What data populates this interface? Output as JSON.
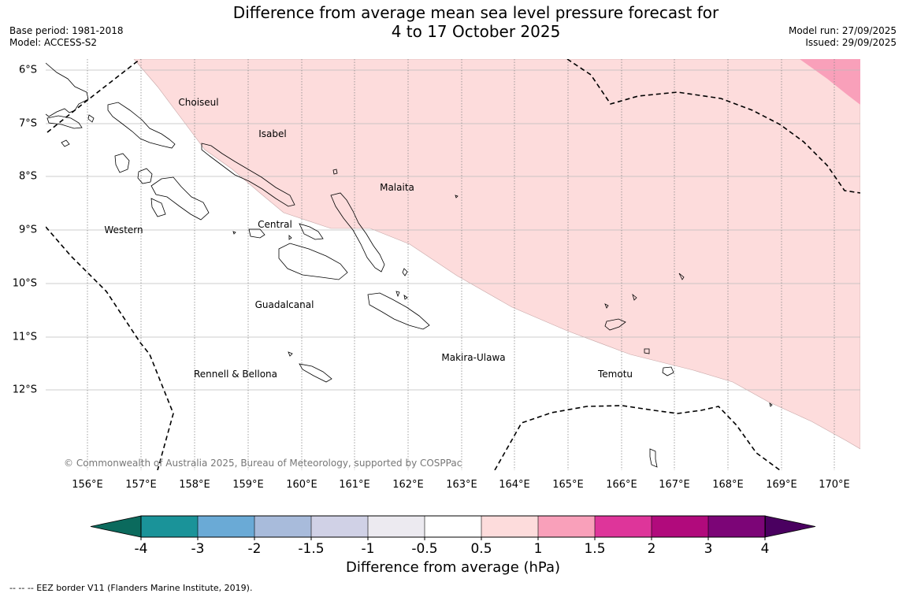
{
  "header": {
    "title_line1": "Difference from average mean sea level pressure forecast for",
    "title_line2": "4 to 17 October 2025",
    "base_period": "Base period: 1981-2018",
    "model": "Model: ACCESS-S2",
    "model_run": "Model run: 27/09/2025",
    "issued": "Issued: 29/09/2025"
  },
  "map": {
    "lat_labels": [
      "6°S",
      "7°S",
      "8°S",
      "9°S",
      "10°S",
      "11°S",
      "12°S"
    ],
    "lon_labels": [
      "156°E",
      "157°E",
      "158°E",
      "159°E",
      "160°E",
      "161°E",
      "162°E",
      "163°E",
      "164°E",
      "165°E",
      "166°E",
      "167°E",
      "168°E",
      "169°E",
      "170°E"
    ],
    "regions": [
      {
        "name": "Choiseul"
      },
      {
        "name": "Isabel"
      },
      {
        "name": "Malaita"
      },
      {
        "name": "Western"
      },
      {
        "name": "Central"
      },
      {
        "name": "Guadalcanal"
      },
      {
        "name": "Makira-Ulawa"
      },
      {
        "name": "Rennell & Bellona"
      },
      {
        "name": "Temotu"
      }
    ],
    "copyright": "© Commonwealth of Australia 2025, Bureau of Meteorology, supported by COSPPac",
    "fill_colors": {
      "band_0_5_to_1": "#fddcdc",
      "band_1_to_1_5": "#f9a0ba"
    }
  },
  "colorbar": {
    "ticks": [
      "-4",
      "-3",
      "-2",
      "-1.5",
      "-1",
      "-0.5",
      "0.5",
      "1",
      "1.5",
      "2",
      "3",
      "4"
    ],
    "colors": [
      "#1a9399",
      "#6aaad6",
      "#a8bbdb",
      "#d0d1e6",
      "#eceaf0",
      "#ffffff",
      "#fddcdc",
      "#f9a0ba",
      "#de359a",
      "#b10a7c",
      "#7c0577"
    ],
    "under_color": "#0b6a5d",
    "over_color": "#4a0060",
    "label": "Difference from average (hPa)"
  },
  "footer": "--  --  -- EEZ border V11 (Flanders Marine Institute, 2019)."
}
